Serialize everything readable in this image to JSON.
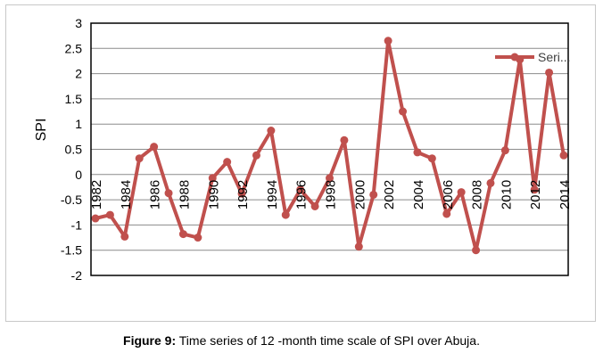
{
  "chart_data": {
    "type": "line",
    "ylabel": "SPI",
    "ylim": [
      -2,
      3
    ],
    "yticks": [
      -2,
      -1.5,
      -1,
      -0.5,
      0,
      0.5,
      1,
      1.5,
      2,
      2.5,
      3
    ],
    "ytick_labels": [
      "-2",
      "-1.5",
      "-1",
      "-0.5",
      "0",
      "0.5",
      "1",
      "1.5",
      "2",
      "2.5",
      "3"
    ],
    "xticks": [
      1982,
      1984,
      1986,
      1988,
      1990,
      1992,
      1994,
      1996,
      1998,
      2000,
      2002,
      2004,
      2006,
      2008,
      2010,
      2012,
      2014
    ],
    "xtick_labels": [
      "1982",
      "1984",
      "1986",
      "1988",
      "1990",
      "1992",
      "1994",
      "1996",
      "1998",
      "2000",
      "2002",
      "2004",
      "2006",
      "2008",
      "2010",
      "2012",
      "2014"
    ],
    "grid": true,
    "legend": "top-right",
    "series": [
      {
        "name": "Seri...",
        "color": "#c0504d",
        "x": [
          1982,
          1983,
          1984,
          1985,
          1986,
          1987,
          1988,
          1989,
          1990,
          1991,
          1992,
          1993,
          1994,
          1995,
          1996,
          1997,
          1998,
          1999,
          2000,
          2001,
          2002,
          2003,
          2004,
          2005,
          2006,
          2007,
          2008,
          2009,
          2010,
          2011,
          2012,
          2013,
          2014
        ],
        "values": [
          -0.87,
          -0.8,
          -1.23,
          0.32,
          0.55,
          -0.37,
          -1.18,
          -1.25,
          -0.07,
          0.25,
          -0.38,
          0.38,
          0.87,
          -0.8,
          -0.3,
          -0.63,
          -0.07,
          0.68,
          -1.43,
          -0.4,
          2.65,
          1.25,
          0.44,
          0.32,
          -0.78,
          -0.35,
          -1.5,
          -0.17,
          0.48,
          2.28,
          -0.3,
          2.02,
          0.38
        ]
      }
    ]
  },
  "caption": {
    "label": "Figure 9:",
    "text": " Time series of 12 -month time scale of SPI over Abuja."
  }
}
